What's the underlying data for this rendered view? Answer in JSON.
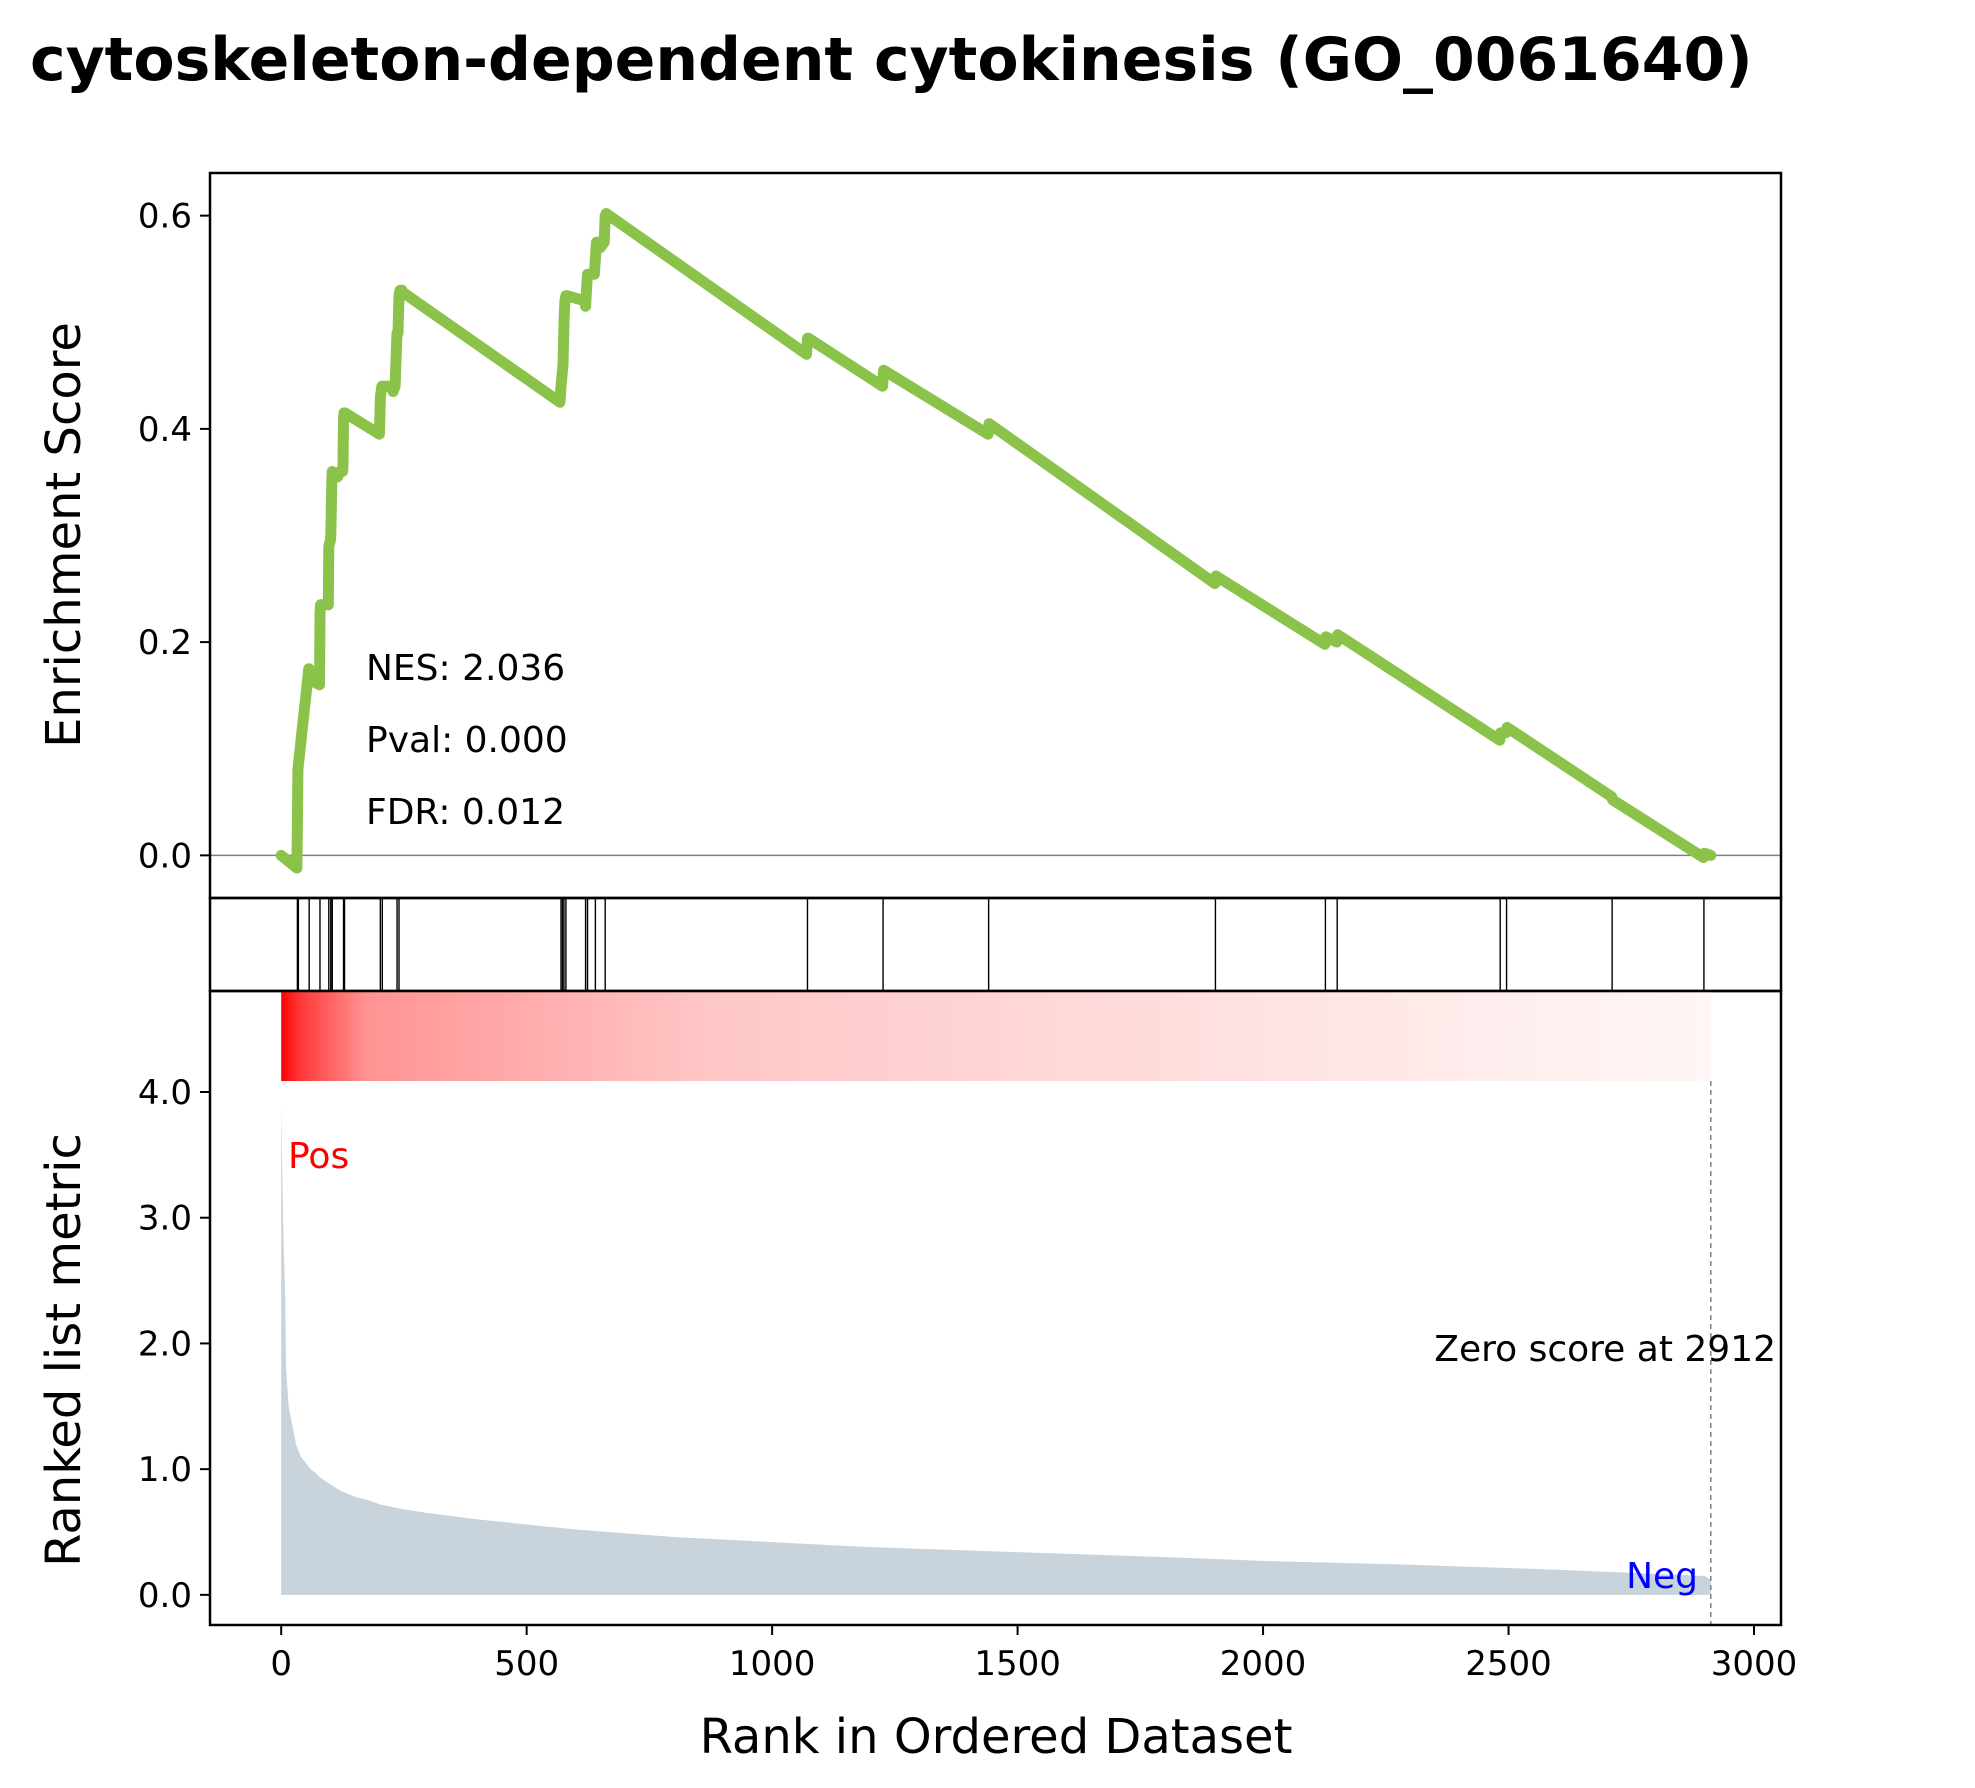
{
  "chart_data": {
    "type": "line",
    "title": "cytoskeleton-dependent cytokinesis (GO_0061640)",
    "xlabel": "Rank in Ordered Dataset",
    "es_panel": {
      "ylabel": "Enrichment Score",
      "ylim": [
        -0.04,
        0.64
      ],
      "yticks": [
        0.0,
        0.2,
        0.4,
        0.6
      ],
      "ytick_labels": [
        "0.0",
        "0.2",
        "0.4",
        "0.6"
      ],
      "line_color": "#8bc34a",
      "zero_line_color": "#808080",
      "series": [
        {
          "x": [
            0,
            32,
            33,
            34,
            35,
            55,
            56,
            57,
            58,
            78,
            79,
            80,
            96,
            97,
            100,
            101,
            103,
            104,
            115,
            120,
            125,
            126,
            127,
            128,
            130,
            200,
            202,
            205,
            208,
            225,
            228,
            232,
            235,
            236,
            238,
            240,
            242,
            246,
            248,
            568,
            570,
            572,
            574,
            576,
            578,
            580,
            582,
            618,
            620,
            622,
            624,
            638,
            640,
            642,
            648,
            650,
            658,
            660,
            662,
            1070,
            1072,
            1074,
            1225,
            1227,
            1440,
            1442,
            1902,
            1904,
            2126,
            2128,
            2150,
            2152,
            2482,
            2484,
            2495,
            2497,
            2710,
            2712,
            2897,
            2899,
            2912
          ],
          "y": [
            0.0,
            -0.012,
            0.03,
            0.08,
            0.085,
            0.17,
            0.175,
            0.175,
            0.165,
            0.16,
            0.225,
            0.235,
            0.235,
            0.29,
            0.295,
            0.3,
            0.35,
            0.36,
            0.355,
            0.36,
            0.36,
            0.365,
            0.41,
            0.415,
            0.415,
            0.395,
            0.43,
            0.44,
            0.44,
            0.44,
            0.435,
            0.44,
            0.48,
            0.49,
            0.49,
            0.525,
            0.53,
            0.53,
            0.528,
            0.425,
            0.44,
            0.45,
            0.46,
            0.5,
            0.52,
            0.525,
            0.525,
            0.52,
            0.515,
            0.53,
            0.545,
            0.545,
            0.56,
            0.575,
            0.575,
            0.57,
            0.575,
            0.6,
            0.602,
            0.47,
            0.485,
            0.485,
            0.44,
            0.455,
            0.395,
            0.405,
            0.255,
            0.262,
            0.198,
            0.205,
            0.2,
            0.207,
            0.108,
            0.115,
            0.115,
            0.12,
            0.055,
            0.052,
            -0.002,
            0.002,
            0.0
          ]
        }
      ],
      "annotations": [
        "NES: 2.036",
        "Pval: 0.000",
        "FDR: 0.012"
      ]
    },
    "hits_panel": {
      "hit_ranks": [
        33,
        35,
        57,
        79,
        97,
        101,
        104,
        127,
        129,
        202,
        206,
        236,
        240,
        570,
        573,
        576,
        580,
        620,
        624,
        640,
        660,
        1072,
        1226,
        1441,
        1903,
        2127,
        2151,
        2483,
        2496,
        2711,
        2898
      ]
    },
    "ranked_panel": {
      "ylabel": "Ranked list metric",
      "ylim": [
        -0.2,
        4.0
      ],
      "yticks": [
        0.0,
        1.0,
        2.0,
        3.0,
        4.0
      ],
      "ytick_labels": [
        "0.0",
        "1.0",
        "2.0",
        "3.0",
        "4.0"
      ],
      "fill_color": "#c8d3dc",
      "heat_color": "#ff0000",
      "ranked_x": [
        0,
        2,
        5,
        8,
        10,
        15,
        20,
        25,
        30,
        40,
        50,
        60,
        70,
        80,
        100,
        120,
        150,
        180,
        200,
        250,
        300,
        400,
        500,
        600,
        800,
        1000,
        1200,
        1500,
        1800,
        2000,
        2300,
        2600,
        2900,
        2912
      ],
      "ranked_y": [
        3.9,
        3.4,
        2.8,
        2.4,
        1.8,
        1.5,
        1.4,
        1.3,
        1.2,
        1.1,
        1.05,
        1.0,
        0.97,
        0.93,
        0.88,
        0.83,
        0.78,
        0.75,
        0.72,
        0.68,
        0.65,
        0.6,
        0.56,
        0.52,
        0.46,
        0.42,
        0.38,
        0.34,
        0.3,
        0.27,
        0.24,
        0.2,
        0.15,
        0.12
      ],
      "pos_label": "Pos",
      "neg_label": "Neg",
      "zero_score_note": "Zero score at 2912",
      "zero_score_rank": 2912
    },
    "x_axis": {
      "xlim": [
        -145,
        3055
      ],
      "ticks": [
        0,
        500,
        1000,
        1500,
        2000,
        2500,
        3000
      ],
      "tick_labels": [
        "0",
        "500",
        "1000",
        "1500",
        "2000",
        "2500",
        "3000"
      ]
    }
  }
}
